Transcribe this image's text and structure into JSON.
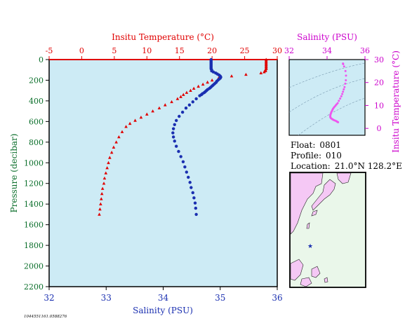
{
  "chart_data": [
    {
      "type": "scatter",
      "name": "profile",
      "top_axis": {
        "label": "Insitu Temperature (°C)",
        "range": [
          -5,
          30
        ],
        "ticks": [
          "-5",
          "0",
          "5",
          "10",
          "15",
          "20",
          "25",
          "30"
        ]
      },
      "bottom_axis": {
        "label": "Salinity (PSU)",
        "range": [
          32,
          36
        ],
        "ticks": [
          "32",
          "33",
          "34",
          "35",
          "36"
        ]
      },
      "left_axis": {
        "label": "Pressure (decibar)",
        "range": [
          0,
          2200
        ],
        "inverted": true,
        "ticks": [
          "0",
          "200",
          "400",
          "600",
          "800",
          "1000",
          "1200",
          "1400",
          "1600",
          "1800",
          "2000",
          "2200"
        ]
      },
      "background": "#cdebf5",
      "series": [
        {
          "variable": "temperature",
          "color": "#e00000",
          "marker": "triangle",
          "points": [
            [
              28.3,
              0
            ],
            [
              28.3,
              10
            ],
            [
              28.3,
              20
            ],
            [
              28.3,
              30
            ],
            [
              28.3,
              40
            ],
            [
              28.3,
              50
            ],
            [
              28.3,
              60
            ],
            [
              28.3,
              70
            ],
            [
              28.3,
              80
            ],
            [
              28.3,
              90
            ],
            [
              28.2,
              100
            ],
            [
              28.2,
              110
            ],
            [
              28.0,
              120
            ],
            [
              27.5,
              130
            ],
            [
              25.2,
              145
            ],
            [
              23.0,
              160
            ],
            [
              21.0,
              180
            ],
            [
              20.0,
              200
            ],
            [
              19.3,
              220
            ],
            [
              18.6,
              240
            ],
            [
              17.9,
              260
            ],
            [
              17.2,
              280
            ],
            [
              16.7,
              300
            ],
            [
              16.1,
              320
            ],
            [
              15.6,
              340
            ],
            [
              15.2,
              360
            ],
            [
              14.7,
              380
            ],
            [
              13.8,
              410
            ],
            [
              12.8,
              440
            ],
            [
              11.9,
              470
            ],
            [
              10.9,
              500
            ],
            [
              10.0,
              530
            ],
            [
              9.1,
              560
            ],
            [
              8.2,
              590
            ],
            [
              7.4,
              620
            ],
            [
              6.8,
              650
            ],
            [
              6.2,
              700
            ],
            [
              5.7,
              750
            ],
            [
              5.3,
              800
            ],
            [
              4.9,
              850
            ],
            [
              4.6,
              900
            ],
            [
              4.3,
              950
            ],
            [
              4.1,
              1000
            ],
            [
              3.9,
              1050
            ],
            [
              3.7,
              1100
            ],
            [
              3.5,
              1150
            ],
            [
              3.4,
              1200
            ],
            [
              3.2,
              1250
            ],
            [
              3.1,
              1300
            ],
            [
              3.0,
              1350
            ],
            [
              2.9,
              1400
            ],
            [
              2.8,
              1450
            ],
            [
              2.7,
              1500
            ]
          ]
        },
        {
          "variable": "salinity",
          "color": "#1a2fb0",
          "marker": "circle",
          "points": [
            [
              34.84,
              0
            ],
            [
              34.84,
              10
            ],
            [
              34.84,
              20
            ],
            [
              34.84,
              30
            ],
            [
              34.84,
              40
            ],
            [
              34.84,
              50
            ],
            [
              34.84,
              60
            ],
            [
              34.84,
              70
            ],
            [
              34.84,
              80
            ],
            [
              34.84,
              90
            ],
            [
              34.85,
              100
            ],
            [
              34.85,
              110
            ],
            [
              34.88,
              120
            ],
            [
              34.92,
              130
            ],
            [
              34.95,
              140
            ],
            [
              34.98,
              150
            ],
            [
              35.0,
              160
            ],
            [
              35.01,
              170
            ],
            [
              35.0,
              180
            ],
            [
              34.98,
              190
            ],
            [
              34.96,
              200
            ],
            [
              34.94,
              210
            ],
            [
              34.93,
              220
            ],
            [
              34.91,
              230
            ],
            [
              34.89,
              240
            ],
            [
              34.87,
              250
            ],
            [
              34.85,
              260
            ],
            [
              34.83,
              270
            ],
            [
              34.81,
              280
            ],
            [
              34.78,
              290
            ],
            [
              34.76,
              300
            ],
            [
              34.74,
              310
            ],
            [
              34.72,
              320
            ],
            [
              34.69,
              330
            ],
            [
              34.67,
              340
            ],
            [
              34.64,
              350
            ],
            [
              34.58,
              380
            ],
            [
              34.52,
              410
            ],
            [
              34.46,
              440
            ],
            [
              34.4,
              470
            ],
            [
              34.34,
              510
            ],
            [
              34.28,
              550
            ],
            [
              34.23,
              590
            ],
            [
              34.2,
              630
            ],
            [
              34.18,
              670
            ],
            [
              34.17,
              710
            ],
            [
              34.18,
              750
            ],
            [
              34.2,
              790
            ],
            [
              34.23,
              840
            ],
            [
              34.27,
              890
            ],
            [
              34.31,
              940
            ],
            [
              34.35,
              990
            ],
            [
              34.38,
              1040
            ],
            [
              34.41,
              1090
            ],
            [
              34.44,
              1140
            ],
            [
              34.47,
              1190
            ],
            [
              34.49,
              1240
            ],
            [
              34.52,
              1290
            ],
            [
              34.54,
              1340
            ],
            [
              34.56,
              1390
            ],
            [
              34.57,
              1440
            ],
            [
              34.58,
              1500
            ]
          ]
        }
      ]
    },
    {
      "type": "scatter",
      "name": "ts-diagram",
      "top_axis": {
        "label": "Salinity (PSU)",
        "range": [
          32,
          36
        ],
        "ticks": [
          "32",
          "34",
          "36"
        ]
      },
      "right_axis": {
        "label": "Insitu Temperature (°C)",
        "range": [
          -3,
          30
        ],
        "ticks": [
          "30",
          "20",
          "10",
          "0"
        ]
      },
      "color": "#ee55ee",
      "points": [
        [
          34.84,
          28.3
        ],
        [
          34.85,
          28.0
        ],
        [
          34.9,
          27
        ],
        [
          34.97,
          25
        ],
        [
          35.0,
          23
        ],
        [
          34.99,
          21
        ],
        [
          34.96,
          19.5
        ],
        [
          34.92,
          18
        ],
        [
          34.88,
          17
        ],
        [
          34.84,
          16
        ],
        [
          34.8,
          15
        ],
        [
          34.75,
          14
        ],
        [
          34.69,
          13
        ],
        [
          34.62,
          12
        ],
        [
          34.56,
          11
        ],
        [
          34.5,
          10.5
        ],
        [
          34.45,
          10
        ],
        [
          34.4,
          9.5
        ],
        [
          34.35,
          9
        ],
        [
          34.31,
          8.5
        ],
        [
          34.28,
          8
        ],
        [
          34.25,
          7.5
        ],
        [
          34.22,
          7
        ],
        [
          34.2,
          6.5
        ],
        [
          34.18,
          6
        ],
        [
          34.17,
          5.5
        ],
        [
          34.17,
          5
        ],
        [
          34.18,
          4.8
        ],
        [
          34.2,
          4.5
        ],
        [
          34.24,
          4.2
        ],
        [
          34.28,
          4.0
        ],
        [
          34.32,
          3.8
        ],
        [
          34.36,
          3.6
        ],
        [
          34.42,
          3.4
        ],
        [
          34.48,
          3.2
        ],
        [
          34.52,
          3.0
        ],
        [
          34.55,
          2.8
        ],
        [
          34.58,
          2.7
        ]
      ]
    }
  ],
  "info": {
    "float_label": "Float:",
    "float_value": "0801",
    "profile_label": "Profile:",
    "profile_value": "010",
    "location_label": "Location:",
    "location_value": "21.0°N  128.2°E"
  },
  "map": {
    "marker": "★",
    "land_color": "#f5c8f5",
    "sea_color": "#eaf7ea",
    "marker_color": "#1a2fb0"
  },
  "footer_id": "1044551161.0588276"
}
